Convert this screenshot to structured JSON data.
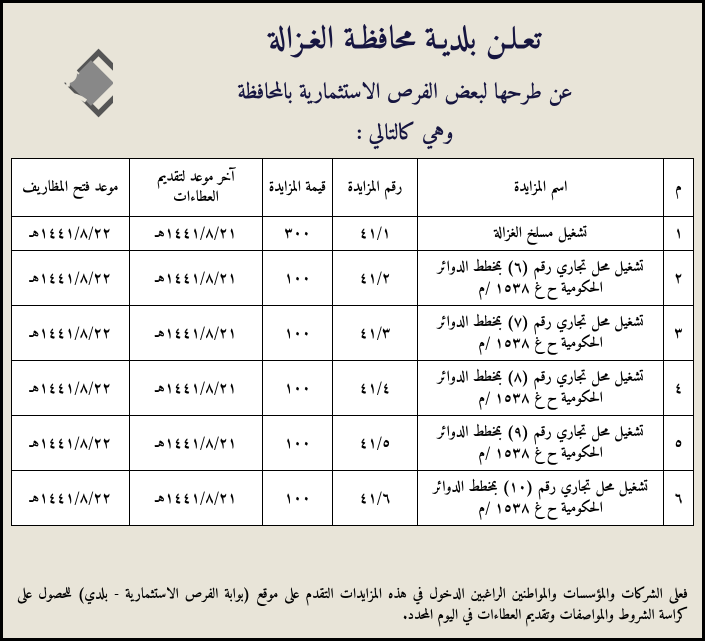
{
  "header": {
    "title1": "تعـلـن بلديـة محافظـة الغـزالة",
    "title2": "عن طرحها لبعض الفرص الاستثمارية بالمحافظة",
    "title3": "وهي كالتالي :"
  },
  "table": {
    "headers": {
      "num": "م",
      "name": "اسم المزايدة",
      "ref": "رقم المزايدة",
      "value": "قيمة المزايدة",
      "deadline": "آخر موعد لتقديم العطاءات",
      "open": "موعد فتح المظاريف"
    },
    "rows": [
      {
        "num": "١",
        "name": "تشغيل مسلخ الغزالة",
        "ref": "٤١/١",
        "value": "٣٠٠",
        "deadline": "١٤٤١/٨/٢١هـ",
        "open": "١٤٤١/٨/٢٢هـ"
      },
      {
        "num": "٢",
        "name": "تشغيل محل تجاري رقم (٦) بمخطط الدوائر الحكومية ح غ ١٥٣٨ /م",
        "ref": "٤١/٢",
        "value": "١٠٠",
        "deadline": "١٤٤١/٨/٢١هـ",
        "open": "١٤٤١/٨/٢٢هـ"
      },
      {
        "num": "٣",
        "name": "تشغيل محل تجاري رقم (٧) بمخطط الدوائر الحكومية ح غ ١٥٣٨ /م",
        "ref": "٤١/٣",
        "value": "١٠٠",
        "deadline": "١٤٤١/٨/٢١هـ",
        "open": "١٤٤١/٨/٢٢هـ"
      },
      {
        "num": "٤",
        "name": "تشغيل محل تجاري رقم (٨) بمخطط الدوائر الحكومية ح غ ١٥٣٨ /م",
        "ref": "٤١/٤",
        "value": "١٠٠",
        "deadline": "١٤٤١/٨/٢١هـ",
        "open": "١٤٤١/٨/٢٢هـ"
      },
      {
        "num": "٥",
        "name": "تشغيل محل تجاري رقم (٩) بمخطط الدوائر الحكومية ح غ ١٥٣٨ /م",
        "ref": "٤١/٥",
        "value": "١٠٠",
        "deadline": "١٤٤١/٨/٢١هـ",
        "open": "١٤٤١/٨/٢٢هـ"
      },
      {
        "num": "٦",
        "name": "تشغيل محل تجاري رقم (١٠) بمخطط الدوائر الحكومية ح غ ١٥٣٨ /م",
        "ref": "٤١/٦",
        "value": "١٠٠",
        "deadline": "١٤٤١/٨/٢١هـ",
        "open": "١٤٤١/٨/٢٢هـ"
      }
    ]
  },
  "footer": "فعلى الشركات والمؤسسات والمواطنين الراغبين الدخول في هذه المزايدات التقدم على موقع (بوابة الفرص الاستثمارية - بلدي) للحصول على كراسة  الشروط والمواصفات وتقديم العطاءات في اليوم المحدد.",
  "style": {
    "page_bg": "#e8e4d8",
    "border_color": "#000000",
    "title_color": "#161540",
    "table_bg": "#ffffff"
  }
}
